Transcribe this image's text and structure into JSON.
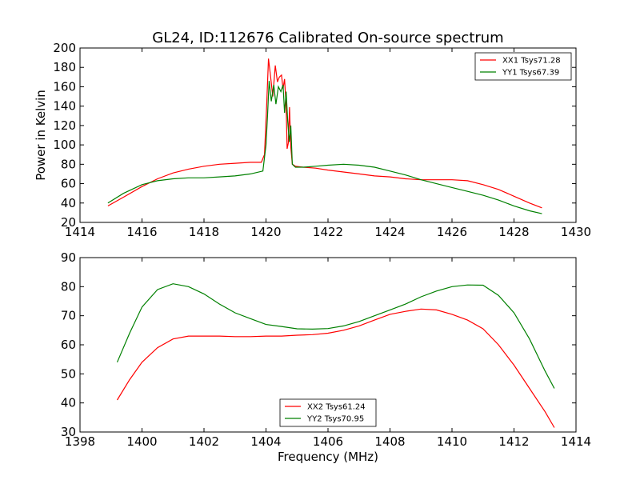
{
  "figure": {
    "title": "GL24, ID:112676 Calibrated On-source spectrum",
    "xlabel": "Frequency (MHz)",
    "ylabel": "Power in Kelvin"
  },
  "chart_data": [
    {
      "type": "line",
      "title": "GL24, ID:112676 Calibrated On-source spectrum",
      "xlabel": "",
      "ylabel": "Power in Kelvin",
      "xlim": [
        1414,
        1430
      ],
      "ylim": [
        20,
        200
      ],
      "xticks": [
        1414,
        1416,
        1418,
        1420,
        1422,
        1424,
        1426,
        1428,
        1430
      ],
      "yticks": [
        20,
        40,
        60,
        80,
        100,
        120,
        140,
        160,
        180,
        200
      ],
      "legend_position": "top-right",
      "series": [
        {
          "name": "XX1 Tsys71.28",
          "color": "#ff0000",
          "x": [
            1414.9,
            1415.4,
            1416.0,
            1416.5,
            1417.0,
            1417.5,
            1418.0,
            1418.5,
            1419.0,
            1419.5,
            1419.85,
            1419.95,
            1420.02,
            1420.08,
            1420.15,
            1420.22,
            1420.3,
            1420.37,
            1420.43,
            1420.5,
            1420.55,
            1420.6,
            1420.65,
            1420.68,
            1420.72,
            1420.76,
            1420.8,
            1420.85,
            1420.95,
            1421.2,
            1421.6,
            1422.0,
            1422.5,
            1423.0,
            1423.5,
            1424.0,
            1424.5,
            1425.0,
            1425.5,
            1426.0,
            1426.5,
            1427.0,
            1427.5,
            1428.0,
            1428.5,
            1428.9
          ],
          "values": [
            37,
            46,
            57,
            65,
            71,
            75,
            78,
            80,
            81,
            82,
            82,
            90,
            140,
            189,
            170,
            150,
            182,
            165,
            170,
            172,
            158,
            168,
            140,
            96,
            102,
            139,
            98,
            80,
            78,
            77,
            76,
            74,
            72,
            70,
            68,
            67,
            65,
            64,
            64,
            64,
            63,
            59,
            54,
            47,
            40,
            35
          ]
        },
        {
          "name": "YY1 Tsys67.39",
          "color": "#008000",
          "x": [
            1414.9,
            1415.4,
            1416.0,
            1416.5,
            1417.0,
            1417.5,
            1418.0,
            1418.5,
            1419.0,
            1419.5,
            1419.9,
            1420.0,
            1420.05,
            1420.1,
            1420.17,
            1420.25,
            1420.32,
            1420.4,
            1420.48,
            1420.55,
            1420.6,
            1420.65,
            1420.7,
            1420.75,
            1420.8,
            1420.85,
            1420.95,
            1421.2,
            1421.6,
            1422.0,
            1422.5,
            1423.0,
            1423.5,
            1424.0,
            1424.5,
            1425.0,
            1425.5,
            1426.0,
            1426.5,
            1427.0,
            1427.5,
            1428.0,
            1428.5,
            1428.9
          ],
          "values": [
            40,
            50,
            59,
            63,
            65,
            66,
            66,
            67,
            68,
            70,
            73,
            100,
            130,
            166,
            145,
            162,
            142,
            160,
            155,
            162,
            133,
            155,
            125,
            103,
            120,
            80,
            77,
            77,
            78,
            79,
            80,
            79,
            77,
            73,
            69,
            64,
            60,
            56,
            52,
            48,
            43,
            37,
            32,
            29
          ]
        }
      ]
    },
    {
      "type": "line",
      "title": "",
      "xlabel": "Frequency (MHz)",
      "ylabel": "",
      "xlim": [
        1398,
        1414
      ],
      "ylim": [
        30,
        90
      ],
      "xticks": [
        1398,
        1400,
        1402,
        1404,
        1406,
        1408,
        1410,
        1412,
        1414
      ],
      "yticks": [
        30,
        40,
        50,
        60,
        70,
        80,
        90
      ],
      "legend_position": "bottom-center",
      "series": [
        {
          "name": "XX2 Tsys61.24",
          "color": "#ff0000",
          "x": [
            1399.2,
            1399.6,
            1400.0,
            1400.5,
            1401.0,
            1401.5,
            1402.0,
            1402.5,
            1403.0,
            1403.5,
            1404.0,
            1404.5,
            1405.0,
            1405.5,
            1406.0,
            1406.5,
            1407.0,
            1407.5,
            1408.0,
            1408.5,
            1409.0,
            1409.5,
            1410.0,
            1410.5,
            1411.0,
            1411.5,
            1412.0,
            1412.5,
            1413.0,
            1413.3
          ],
          "values": [
            41,
            48,
            54,
            59,
            62,
            63,
            63,
            63,
            62.8,
            62.8,
            63,
            63,
            63.3,
            63.5,
            64,
            65,
            66.5,
            68.5,
            70.5,
            71.5,
            72.3,
            72,
            70.5,
            68.5,
            65.5,
            60,
            53,
            45,
            37,
            31.5
          ]
        },
        {
          "name": "YY2 Tsys70.95",
          "color": "#008000",
          "x": [
            1399.2,
            1399.6,
            1400.0,
            1400.5,
            1401.0,
            1401.5,
            1402.0,
            1402.5,
            1403.0,
            1403.5,
            1404.0,
            1404.5,
            1405.0,
            1405.5,
            1406.0,
            1406.5,
            1407.0,
            1407.5,
            1408.0,
            1408.5,
            1409.0,
            1409.5,
            1410.0,
            1410.5,
            1411.0,
            1411.5,
            1412.0,
            1412.5,
            1413.0,
            1413.3
          ],
          "values": [
            54,
            64,
            73,
            79,
            81,
            80,
            77.5,
            74,
            71,
            69,
            67,
            66.3,
            65.5,
            65.4,
            65.6,
            66.5,
            68,
            70,
            72,
            74,
            76.5,
            78.5,
            80,
            80.6,
            80.5,
            77,
            71,
            62,
            51,
            45
          ]
        }
      ]
    }
  ]
}
